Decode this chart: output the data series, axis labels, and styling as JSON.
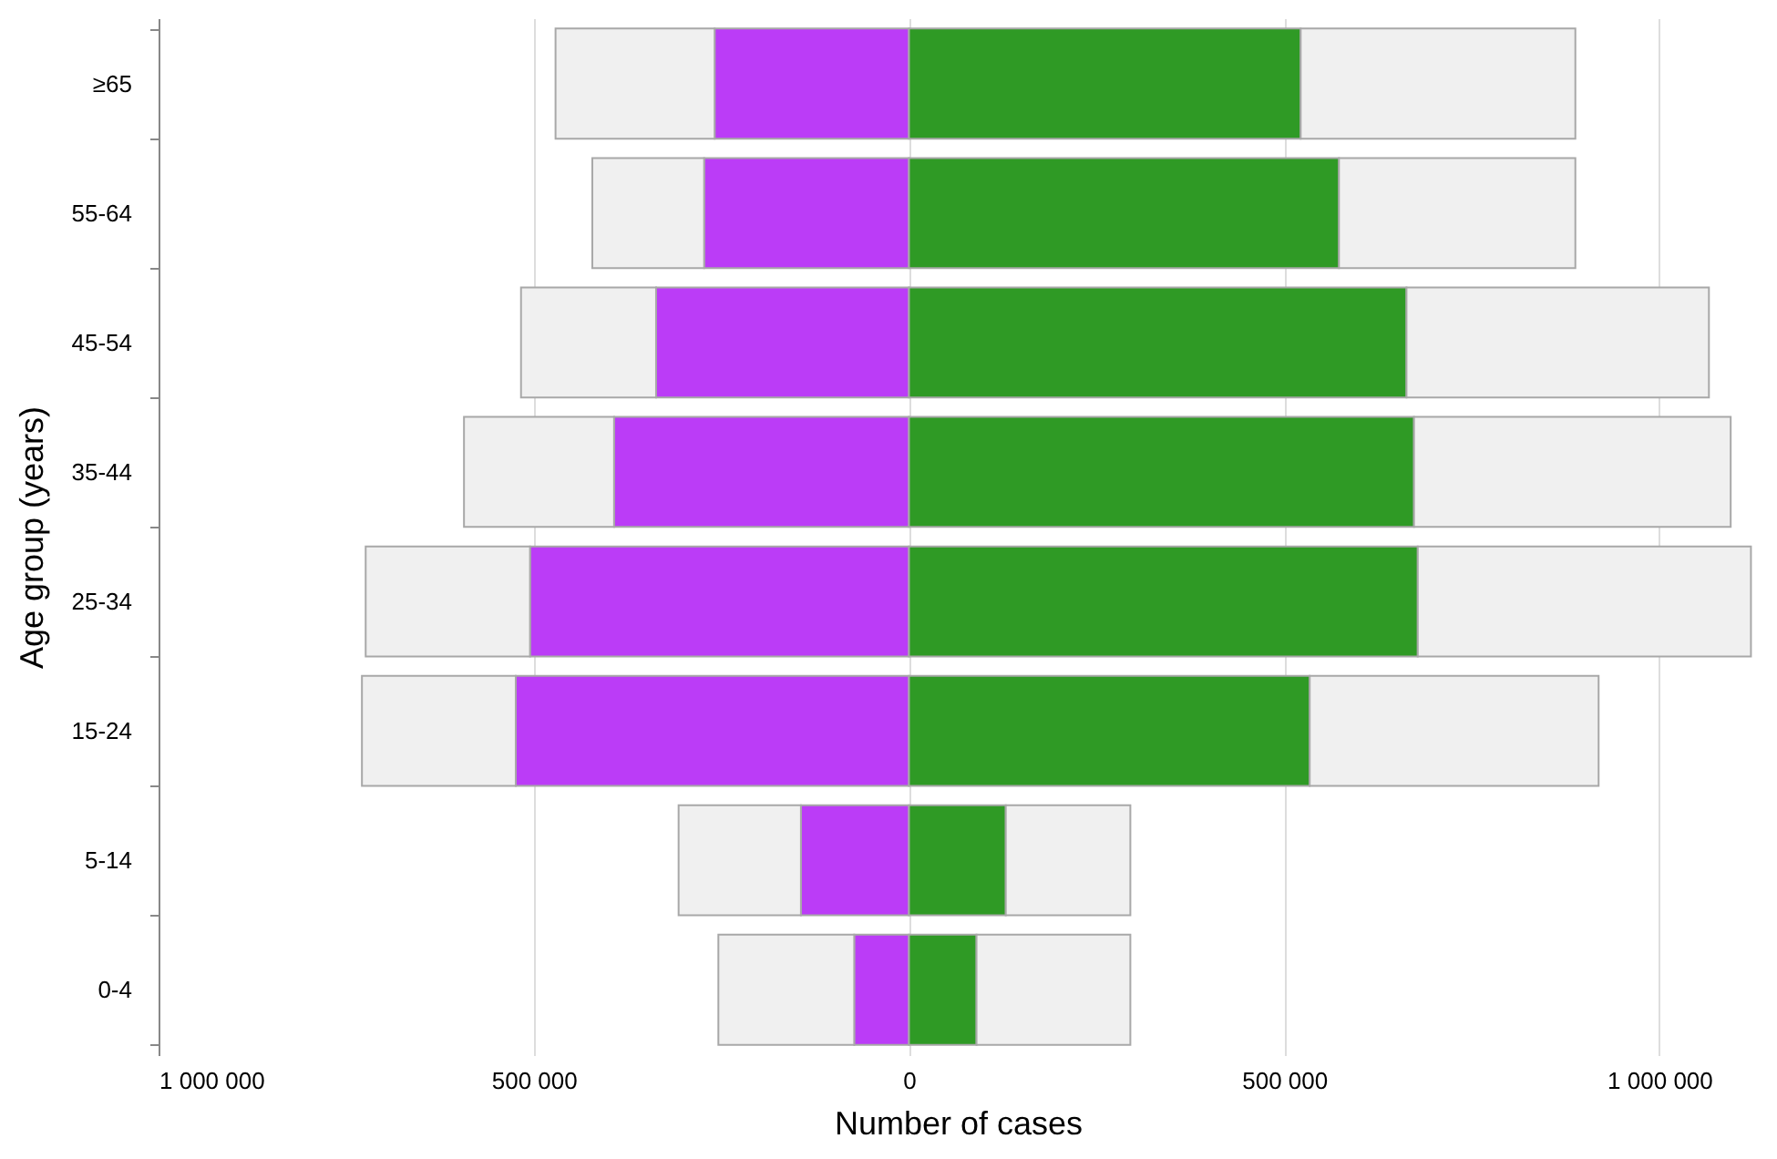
{
  "chart_data": {
    "type": "bar",
    "orientation": "horizontal",
    "stacked": true,
    "xlabel": "Number of cases",
    "ylabel": "Age group (years)",
    "categories": [
      "≥65",
      "55-64",
      "45-54",
      "35-44",
      "25-34",
      "15-24",
      "5-14",
      "0-4"
    ],
    "series": [
      {
        "color": "#bb3cf7",
        "values": [
          -259000,
          -273000,
          -337000,
          -393000,
          -505000,
          -524000,
          -144000,
          -73000
        ]
      },
      {
        "color": "#2f9a25",
        "values": [
          522000,
          573000,
          663000,
          673000,
          678000,
          534000,
          129000,
          90000
        ]
      },
      {
        "color": "#f0f0f0",
        "values": [
          -212000,
          -149000,
          -180000,
          -200000,
          -219000,
          -205000,
          -163000,
          -181000
        ]
      },
      {
        "color": "#f0f0f0",
        "values": [
          366000,
          315000,
          403000,
          422000,
          444000,
          385000,
          166000,
          205000
        ]
      }
    ],
    "xlim": [
      -1000000,
      1130000
    ],
    "xticks": [
      {
        "value": -1000000,
        "label": "1 000 000"
      },
      {
        "value": -500000,
        "label": "500 000"
      },
      0,
      {
        "value": 500000,
        "label": "500 000"
      },
      {
        "value": 1000000,
        "label": "1 000 000"
      }
    ],
    "grid": "x",
    "legend": false
  }
}
